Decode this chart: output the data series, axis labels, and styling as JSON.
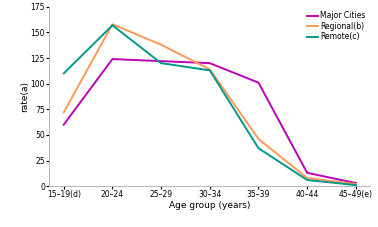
{
  "x_labels": [
    "15–19(d)",
    "20–24",
    "25–29",
    "30–34",
    "35–39",
    "40–44",
    "45–49(e)"
  ],
  "major_cities": [
    60,
    124,
    122,
    120,
    101,
    13,
    3
  ],
  "regional": [
    72,
    158,
    138,
    114,
    46,
    8,
    2
  ],
  "remote": [
    110,
    157,
    120,
    113,
    37,
    6,
    1
  ],
  "colors": {
    "major_cities": "#bb00bb",
    "regional": "#ff9955",
    "remote": "#009988"
  },
  "legend_labels": [
    "Major Cities",
    "Regional(b)",
    "Remote(c)"
  ],
  "ylabel": "rate(a)",
  "xlabel": "Age group (years)",
  "ylim": [
    0,
    175
  ],
  "yticks": [
    0,
    25,
    50,
    75,
    100,
    125,
    150,
    175
  ],
  "line_width": 1.4,
  "background_color": "#ffffff",
  "figsize": [
    3.78,
    2.27
  ],
  "dpi": 100
}
